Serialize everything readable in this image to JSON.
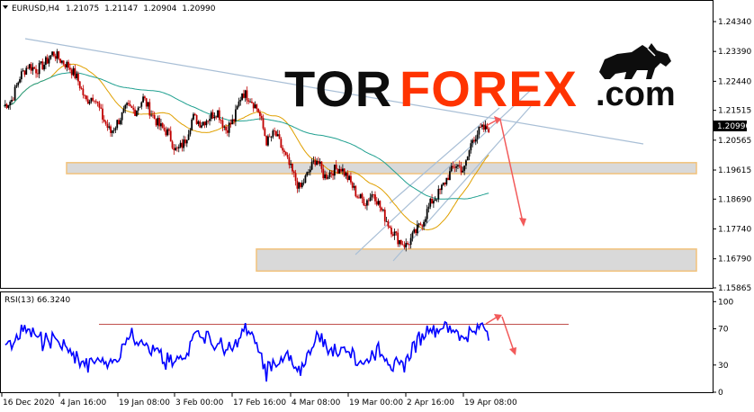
{
  "chart_data": [
    {
      "type": "candlestick",
      "header": {
        "symbol": "EURUSD,H4",
        "open": "1.21075",
        "high": "1.21147",
        "low": "1.20904",
        "close": "1.20990"
      },
      "current_price_label": "1.20990",
      "ylim": [
        1.15865,
        1.2434
      ],
      "y_ticks": [
        "1.24340",
        "1.23390",
        "1.22440",
        "1.21515",
        "1.20565",
        "1.19615",
        "1.18690",
        "1.17740",
        "1.16790",
        "1.15865"
      ],
      "x_ticks": [
        "16 Dec 2020",
        "4 Jan 16:00",
        "19 Jan 08:00",
        "3 Feb 00:00",
        "17 Feb 16:00",
        "4 Mar 08:00",
        "19 Mar 00:00",
        "2 Apr 16:00",
        "19 Apr 08:00"
      ],
      "price_path": [
        1.2165,
        1.2185,
        1.226,
        1.2295,
        1.228,
        1.23,
        1.2335,
        1.231,
        1.229,
        1.225,
        1.218,
        1.22,
        1.213,
        1.208,
        1.212,
        1.216,
        1.215,
        1.219,
        1.214,
        1.21,
        1.208,
        1.202,
        1.205,
        1.213,
        1.211,
        1.213,
        1.215,
        1.209,
        1.212,
        1.221,
        1.219,
        1.215,
        1.205,
        1.208,
        1.202,
        1.196,
        1.19,
        1.195,
        1.2,
        1.194,
        1.196,
        1.197,
        1.193,
        1.188,
        1.186,
        1.189,
        1.183,
        1.178,
        1.174,
        1.172,
        1.176,
        1.18,
        1.186,
        1.189,
        1.194,
        1.198,
        1.196,
        1.206,
        1.209,
        1.2095
      ],
      "zones": [
        {
          "from": 1.195,
          "to": 1.1985
        },
        {
          "from": 1.164,
          "to": 1.171
        }
      ]
    },
    {
      "type": "line",
      "title": "RSI(13) 66.3240",
      "ylim": [
        0,
        100
      ],
      "y_ticks": [
        "100",
        "70",
        "30",
        "0"
      ],
      "level": 75
    }
  ],
  "logo": {
    "part1": "TOR",
    "part2": "FOREX",
    "part3": ".com",
    "bull_icon": "bull-icon"
  },
  "colors": {
    "bull_candle": "#000000",
    "bear_candle": "#c00000",
    "ma_fast": "#e0a000",
    "ma_slow": "#20a090",
    "rsi": "#0000ff",
    "zone_fill": "#d9d9d9",
    "zone_stroke": "#f2c27a",
    "arrow": "#f25a5a",
    "trendline": "#a9bfd6"
  }
}
